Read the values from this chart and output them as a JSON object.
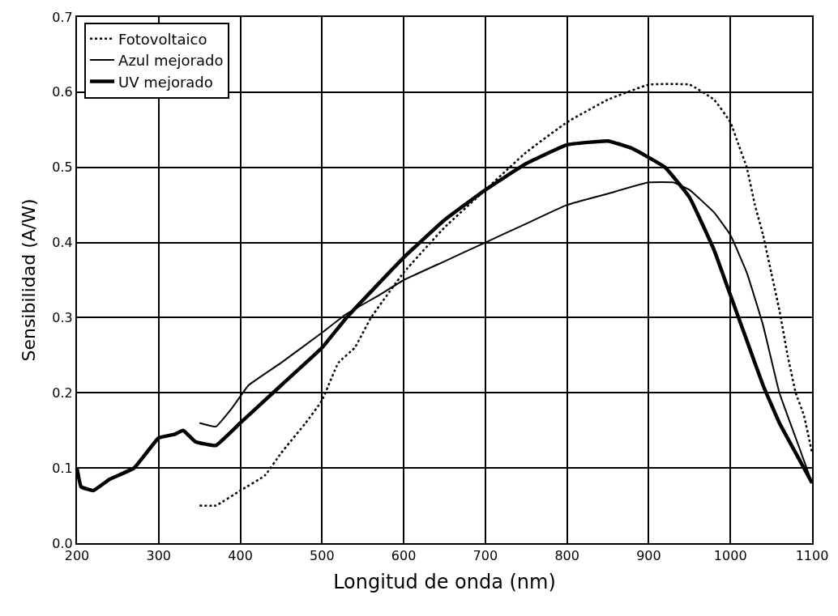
{
  "chart_data": {
    "type": "line",
    "xlabel": "Longitud de onda (nm)",
    "ylabel": "Sensibilidad (A/W)",
    "xlim": [
      200,
      1100
    ],
    "xticks": [
      200,
      300,
      400,
      500,
      600,
      700,
      800,
      900,
      1000,
      1100
    ],
    "ylim": [
      0,
      0.7
    ],
    "yticks": [
      {
        "value": 0,
        "label": "0.0"
      },
      0.1,
      0.2,
      0.3,
      0.4,
      0.5,
      0.6,
      0.7
    ],
    "grid": true,
    "legend": "top left",
    "marker": "none",
    "series": [
      {
        "name": "Fotovoltaico",
        "color": "#000000",
        "line_style": "dotted",
        "x": [
          350,
          370,
          400,
          430,
          450,
          480,
          500,
          520,
          540,
          560,
          600,
          650,
          700,
          750,
          800,
          850,
          900,
          950,
          980,
          1000,
          1010,
          1020,
          1030,
          1040,
          1050,
          1060,
          1070,
          1080,
          1090,
          1100
        ],
        "values": [
          0.05,
          0.05,
          0.07,
          0.09,
          0.12,
          0.16,
          0.19,
          0.24,
          0.26,
          0.3,
          0.36,
          0.42,
          0.47,
          0.52,
          0.56,
          0.59,
          0.61,
          0.61,
          0.59,
          0.56,
          0.53,
          0.5,
          0.45,
          0.41,
          0.36,
          0.31,
          0.25,
          0.2,
          0.17,
          0.12
        ]
      },
      {
        "name": "Azul mejorado",
        "color": "#000000",
        "line_style": "solid",
        "x": [
          350,
          370,
          390,
          410,
          450,
          500,
          530,
          570,
          600,
          650,
          700,
          750,
          800,
          850,
          900,
          930,
          950,
          980,
          1000,
          1020,
          1040,
          1060,
          1080,
          1100
        ],
        "values": [
          0.16,
          0.155,
          0.18,
          0.21,
          0.24,
          0.28,
          0.305,
          0.33,
          0.35,
          0.375,
          0.4,
          0.425,
          0.45,
          0.465,
          0.48,
          0.48,
          0.47,
          0.44,
          0.41,
          0.36,
          0.29,
          0.2,
          0.14,
          0.08
        ]
      },
      {
        "name": "UV mejorado",
        "color": "#000000",
        "line_style": "solid",
        "x": [
          200,
          205,
          220,
          240,
          270,
          300,
          320,
          330,
          345,
          370,
          400,
          450,
          500,
          530,
          600,
          650,
          700,
          750,
          800,
          850,
          880,
          920,
          950,
          980,
          1000,
          1020,
          1040,
          1060,
          1080,
          1100
        ],
        "values": [
          0.1,
          0.075,
          0.07,
          0.085,
          0.1,
          0.14,
          0.145,
          0.15,
          0.135,
          0.13,
          0.16,
          0.21,
          0.26,
          0.3,
          0.38,
          0.43,
          0.47,
          0.505,
          0.53,
          0.535,
          0.525,
          0.5,
          0.46,
          0.39,
          0.33,
          0.27,
          0.21,
          0.16,
          0.12,
          0.08
        ]
      }
    ]
  }
}
